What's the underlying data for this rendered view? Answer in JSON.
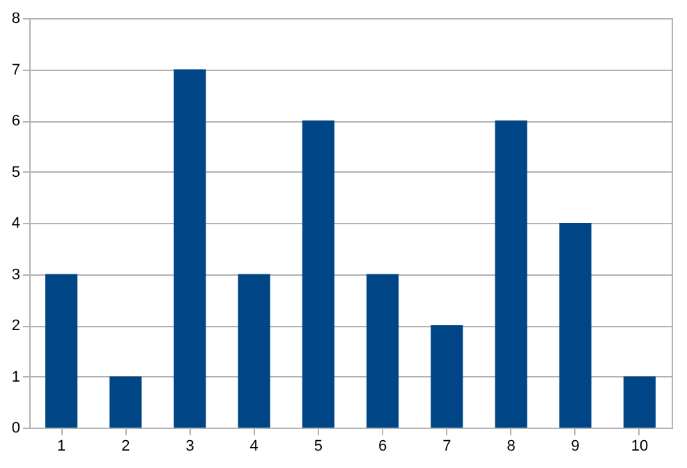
{
  "chart_data": {
    "type": "bar",
    "categories": [
      "1",
      "2",
      "3",
      "4",
      "5",
      "6",
      "7",
      "8",
      "9",
      "10"
    ],
    "values": [
      3,
      1,
      7,
      3,
      6,
      3,
      2,
      6,
      4,
      1
    ],
    "color": "#004586",
    "ylim": [
      0,
      8
    ],
    "yticks": [
      0,
      1,
      2,
      3,
      4,
      5,
      6,
      7,
      8
    ],
    "grid": "y"
  }
}
